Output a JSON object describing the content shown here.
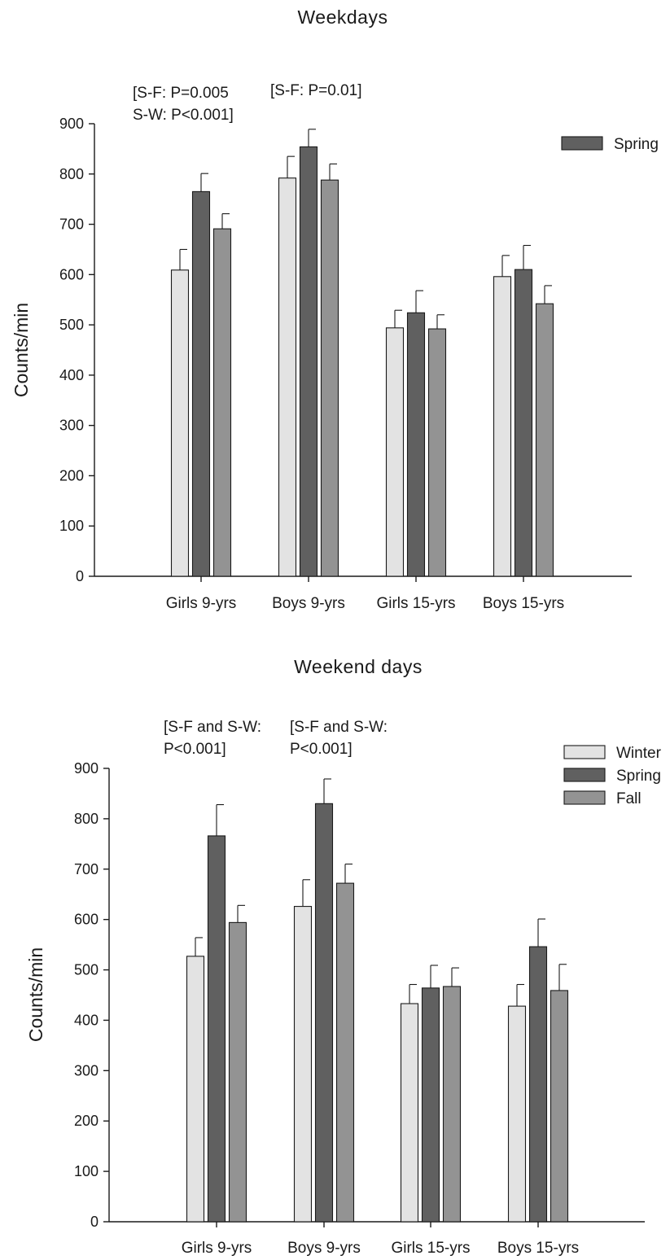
{
  "chart_data": [
    {
      "type": "bar",
      "title": "Weekdays",
      "ylabel": "Counts/min",
      "xlabel": "",
      "ylim": [
        0,
        900
      ],
      "yticks": [
        0,
        100,
        200,
        300,
        400,
        500,
        600,
        700,
        800,
        900
      ],
      "categories": [
        "Girls 9-yrs",
        "Boys 9-yrs",
        "Girls 15-yrs",
        "Boys 15-yrs"
      ],
      "series": [
        {
          "values": [
            609,
            792,
            494,
            596
          ],
          "errors": [
            41,
            43,
            35,
            42
          ],
          "color": "#e3e3e3"
        },
        {
          "name": "Spring",
          "values": [
            765,
            854,
            524,
            610
          ],
          "errors": [
            36,
            35,
            44,
            48
          ],
          "color": "#606060"
        },
        {
          "values": [
            691,
            788,
            492,
            542
          ],
          "errors": [
            30,
            32,
            28,
            36
          ],
          "color": "#939393"
        }
      ],
      "annotations": [
        {
          "lines": [
            "[S-F: P=0.005",
            "S-W: P<0.001]"
          ],
          "category": "Girls 9-yrs"
        },
        {
          "lines": [
            "[S-F: P=0.01]"
          ],
          "category": "Boys 9-yrs"
        }
      ],
      "legend": {
        "entries": [
          "Spring"
        ],
        "placement": "top-right"
      },
      "grid": false
    },
    {
      "type": "bar",
      "title": "Weekend  days",
      "ylabel": "Counts/min",
      "xlabel": "",
      "ylim": [
        0,
        900
      ],
      "yticks": [
        0,
        100,
        200,
        300,
        400,
        500,
        600,
        700,
        800,
        900
      ],
      "categories": [
        "Girls 9-yrs",
        "Boys 9-yrs",
        "Girls 15-yrs",
        "Boys 15-yrs"
      ],
      "series": [
        {
          "name": "Winter",
          "values": [
            527,
            626,
            433,
            428
          ],
          "errors": [
            37,
            53,
            38,
            43
          ],
          "color": "#e3e3e3"
        },
        {
          "name": "Spring",
          "values": [
            766,
            830,
            464,
            546
          ],
          "errors": [
            62,
            49,
            45,
            55
          ],
          "color": "#606060"
        },
        {
          "name": "Fall",
          "values": [
            594,
            672,
            467,
            459
          ],
          "errors": [
            34,
            38,
            37,
            52
          ],
          "color": "#939393"
        }
      ],
      "annotations": [
        {
          "lines": [
            "[S-F and S-W:",
            "P<0.001]"
          ],
          "category": "Girls 9-yrs"
        },
        {
          "lines": [
            "[S-F and S-W:",
            "P<0.001]"
          ],
          "category": "Boys 9-yrs"
        }
      ],
      "legend": {
        "entries": [
          "Winter",
          "Spring",
          "Fall"
        ],
        "placement": "top-right"
      },
      "grid": false
    }
  ]
}
